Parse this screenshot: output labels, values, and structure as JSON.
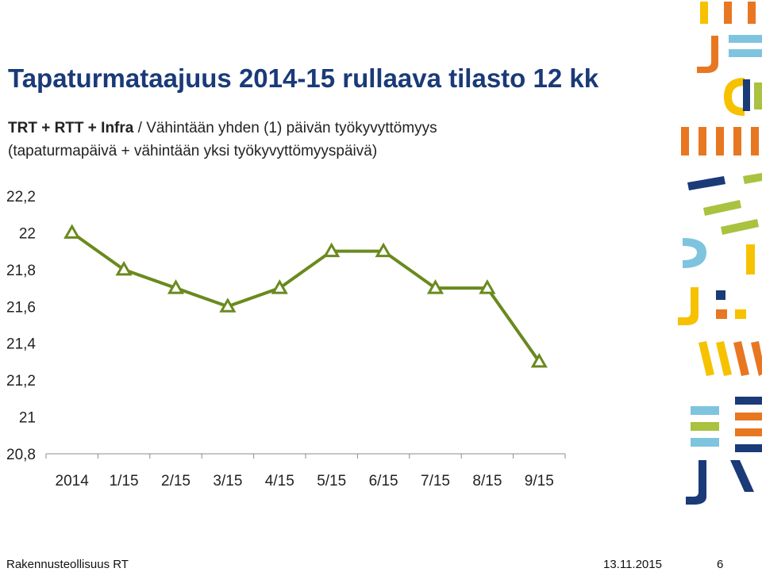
{
  "slide": {
    "title": "Tapaturmataajuus 2014-15 rullaava tilasto 12 kk",
    "subtitle_bold": "TRT + RTT + Infra",
    "subtitle_rest": " / Vähintään yhden (1) päivän työkyvyttömyys",
    "subtitle_line2": "(tapaturmapäivä + vähintään yksi työkyvyttömyyspäivä)"
  },
  "footer": {
    "organization": "Rakennusteollisuus RT",
    "date": "13.11.2015",
    "page": "6"
  },
  "colors": {
    "title": "#1a3a78",
    "series": "#6a8a1e",
    "decor_orange": "#e87722",
    "decor_yellow": "#f6c200",
    "decor_navy": "#1a3a78",
    "decor_lightblue": "#7fc4df",
    "decor_green": "#a9c23f"
  },
  "chart_data": {
    "type": "line",
    "categories": [
      "2014",
      "1/15",
      "2/15",
      "3/15",
      "4/15",
      "5/15",
      "6/15",
      "7/15",
      "8/15",
      "9/15"
    ],
    "series": [
      {
        "values": [
          22.0,
          21.8,
          21.7,
          21.6,
          21.7,
          21.9,
          21.9,
          21.7,
          21.7,
          21.3
        ]
      }
    ],
    "y_ticks": [
      "22,2",
      "22",
      "21,8",
      "21,6",
      "21,4",
      "21,2",
      "21",
      "20,8"
    ],
    "y_tick_values": [
      22.2,
      22.0,
      21.8,
      21.6,
      21.4,
      21.2,
      21.0,
      20.8
    ],
    "ylim": [
      20.8,
      22.2
    ],
    "marker": "triangle",
    "grid": false,
    "legend": "none"
  }
}
